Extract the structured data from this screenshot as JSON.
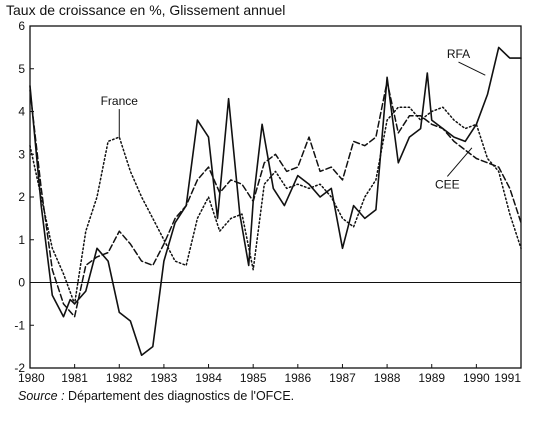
{
  "chart_data": {
    "type": "line",
    "title": "Taux de croissance en %, Glissement annuel",
    "xlabel": "",
    "ylabel": "",
    "xlim": [
      1980,
      1991
    ],
    "ylim": [
      -2,
      6
    ],
    "x_ticks": [
      1980,
      1981,
      1982,
      1983,
      1984,
      1985,
      1986,
      1987,
      1988,
      1989,
      1990,
      1991
    ],
    "y_ticks": [
      -2,
      -1,
      0,
      1,
      2,
      3,
      4,
      5,
      6
    ],
    "grid": false,
    "series": [
      {
        "name": "RFA",
        "style": "solid",
        "points": [
          [
            1980.0,
            4.6
          ],
          [
            1980.25,
            1.8
          ],
          [
            1980.5,
            -0.3
          ],
          [
            1980.75,
            -0.8
          ],
          [
            1980.9,
            -0.4
          ],
          [
            1981.0,
            -0.5
          ],
          [
            1981.25,
            -0.2
          ],
          [
            1981.5,
            0.8
          ],
          [
            1981.75,
            0.5
          ],
          [
            1982.0,
            -0.7
          ],
          [
            1982.25,
            -0.9
          ],
          [
            1982.5,
            -1.7
          ],
          [
            1982.75,
            -1.5
          ],
          [
            1983.0,
            0.5
          ],
          [
            1983.25,
            1.4
          ],
          [
            1983.5,
            1.8
          ],
          [
            1983.75,
            3.8
          ],
          [
            1984.0,
            3.4
          ],
          [
            1984.2,
            1.5
          ],
          [
            1984.45,
            4.3
          ],
          [
            1984.7,
            1.6
          ],
          [
            1984.9,
            0.4
          ],
          [
            1985.0,
            1.9
          ],
          [
            1985.2,
            3.7
          ],
          [
            1985.45,
            2.2
          ],
          [
            1985.7,
            1.8
          ],
          [
            1986.0,
            2.5
          ],
          [
            1986.25,
            2.3
          ],
          [
            1986.5,
            2.0
          ],
          [
            1986.75,
            2.2
          ],
          [
            1987.0,
            0.8
          ],
          [
            1987.25,
            1.8
          ],
          [
            1987.5,
            1.5
          ],
          [
            1987.75,
            1.7
          ],
          [
            1988.0,
            4.8
          ],
          [
            1988.25,
            2.8
          ],
          [
            1988.5,
            3.4
          ],
          [
            1988.75,
            3.6
          ],
          [
            1988.9,
            4.9
          ],
          [
            1989.0,
            3.8
          ],
          [
            1989.25,
            3.6
          ],
          [
            1989.5,
            3.4
          ],
          [
            1989.75,
            3.3
          ],
          [
            1990.0,
            3.7
          ],
          [
            1990.25,
            4.4
          ],
          [
            1990.5,
            5.5
          ],
          [
            1990.75,
            5.25
          ],
          [
            1991.0,
            5.25
          ]
        ]
      },
      {
        "name": "CEE",
        "style": "dashed",
        "points": [
          [
            1980.0,
            4.5
          ],
          [
            1980.25,
            2.2
          ],
          [
            1980.5,
            0.3
          ],
          [
            1980.75,
            -0.5
          ],
          [
            1981.0,
            -0.8
          ],
          [
            1981.25,
            0.4
          ],
          [
            1981.5,
            0.6
          ],
          [
            1981.75,
            0.7
          ],
          [
            1982.0,
            1.2
          ],
          [
            1982.25,
            0.9
          ],
          [
            1982.5,
            0.5
          ],
          [
            1982.75,
            0.4
          ],
          [
            1983.0,
            0.9
          ],
          [
            1983.25,
            1.5
          ],
          [
            1983.5,
            1.8
          ],
          [
            1983.75,
            2.4
          ],
          [
            1984.0,
            2.7
          ],
          [
            1984.25,
            2.1
          ],
          [
            1984.5,
            2.4
          ],
          [
            1984.75,
            2.3
          ],
          [
            1985.0,
            1.9
          ],
          [
            1985.25,
            2.8
          ],
          [
            1985.5,
            3.0
          ],
          [
            1985.75,
            2.6
          ],
          [
            1986.0,
            2.7
          ],
          [
            1986.25,
            3.4
          ],
          [
            1986.5,
            2.6
          ],
          [
            1986.75,
            2.7
          ],
          [
            1987.0,
            2.4
          ],
          [
            1987.25,
            3.3
          ],
          [
            1987.5,
            3.2
          ],
          [
            1987.75,
            3.4
          ],
          [
            1988.0,
            4.7
          ],
          [
            1988.25,
            3.5
          ],
          [
            1988.5,
            3.9
          ],
          [
            1988.75,
            3.9
          ],
          [
            1989.0,
            3.7
          ],
          [
            1989.25,
            3.6
          ],
          [
            1989.5,
            3.3
          ],
          [
            1989.75,
            3.1
          ],
          [
            1990.0,
            2.9
          ],
          [
            1990.25,
            2.8
          ],
          [
            1990.5,
            2.7
          ],
          [
            1990.75,
            2.2
          ],
          [
            1991.0,
            1.4
          ]
        ]
      },
      {
        "name": "France",
        "style": "dotted",
        "points": [
          [
            1980.0,
            3.2
          ],
          [
            1980.25,
            2.0
          ],
          [
            1980.5,
            0.8
          ],
          [
            1980.75,
            0.2
          ],
          [
            1981.0,
            -0.5
          ],
          [
            1981.25,
            1.2
          ],
          [
            1981.5,
            2.0
          ],
          [
            1981.75,
            3.3
          ],
          [
            1982.0,
            3.4
          ],
          [
            1982.25,
            2.6
          ],
          [
            1982.5,
            2.0
          ],
          [
            1982.75,
            1.5
          ],
          [
            1983.0,
            1.0
          ],
          [
            1983.25,
            0.5
          ],
          [
            1983.5,
            0.4
          ],
          [
            1983.75,
            1.5
          ],
          [
            1984.0,
            2.0
          ],
          [
            1984.25,
            1.2
          ],
          [
            1984.5,
            1.5
          ],
          [
            1984.75,
            1.6
          ],
          [
            1985.0,
            0.3
          ],
          [
            1985.25,
            2.3
          ],
          [
            1985.5,
            2.6
          ],
          [
            1985.75,
            2.2
          ],
          [
            1986.0,
            2.3
          ],
          [
            1986.25,
            2.2
          ],
          [
            1986.5,
            2.3
          ],
          [
            1986.75,
            2.0
          ],
          [
            1987.0,
            1.5
          ],
          [
            1987.25,
            1.3
          ],
          [
            1987.5,
            2.0
          ],
          [
            1987.75,
            2.4
          ],
          [
            1988.0,
            3.8
          ],
          [
            1988.25,
            4.1
          ],
          [
            1988.5,
            4.1
          ],
          [
            1988.75,
            3.8
          ],
          [
            1989.0,
            4.0
          ],
          [
            1989.25,
            4.1
          ],
          [
            1989.5,
            3.8
          ],
          [
            1989.75,
            3.6
          ],
          [
            1990.0,
            3.7
          ],
          [
            1990.25,
            2.9
          ],
          [
            1990.5,
            2.6
          ],
          [
            1990.75,
            1.6
          ],
          [
            1991.0,
            0.8
          ]
        ]
      }
    ],
    "series_labels": [
      {
        "text": "France",
        "x": 1982.0,
        "y": 4.15,
        "pointer_to": [
          1982.0,
          3.4
        ]
      },
      {
        "text": "RFA",
        "x": 1989.6,
        "y": 5.25,
        "pointer_to": [
          1990.2,
          4.85
        ]
      },
      {
        "text": "CEE",
        "x": 1989.35,
        "y": 2.2,
        "pointer_to": [
          1989.9,
          3.15
        ]
      }
    ]
  },
  "source": {
    "label": "Source :",
    "text": " Département des diagnostics de l'OFCE."
  }
}
